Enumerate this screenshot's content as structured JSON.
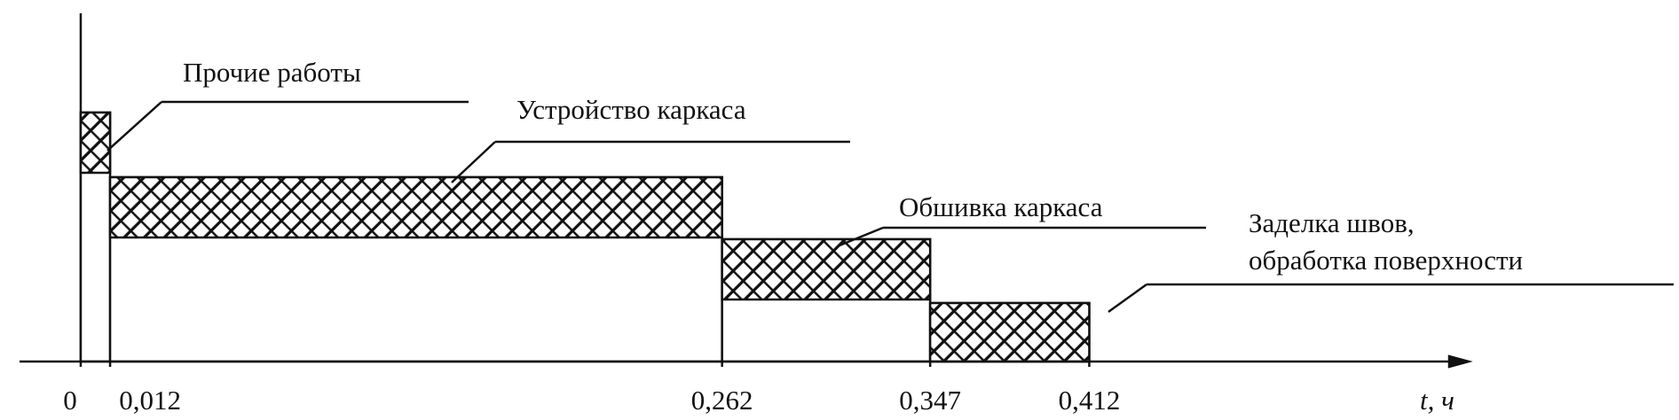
{
  "chart_data": {
    "type": "gantt",
    "x_label": "t, ч",
    "xlim": [
      -0.025,
      0.567
    ],
    "xticks": [
      0,
      {
        "value": 0.012,
        "label": "0,012"
      },
      {
        "value": 0.262,
        "label": "0,262"
      },
      {
        "value": 0.347,
        "label": "0,347"
      },
      {
        "value": 0.412,
        "label": "0,412"
      }
    ],
    "tasks": [
      {
        "name_lines": [
          "Прочие работы"
        ],
        "start": 0,
        "end": 0.012
      },
      {
        "name_lines": [
          "Устройство каркаса"
        ],
        "start": 0.012,
        "end": 0.262
      },
      {
        "name_lines": [
          "Обшивка каркаса"
        ],
        "start": 0.262,
        "end": 0.347
      },
      {
        "name_lines": [
          "Заделка швов,",
          "обработка поверхности"
        ],
        "start": 0.347,
        "end": 0.412
      }
    ]
  }
}
